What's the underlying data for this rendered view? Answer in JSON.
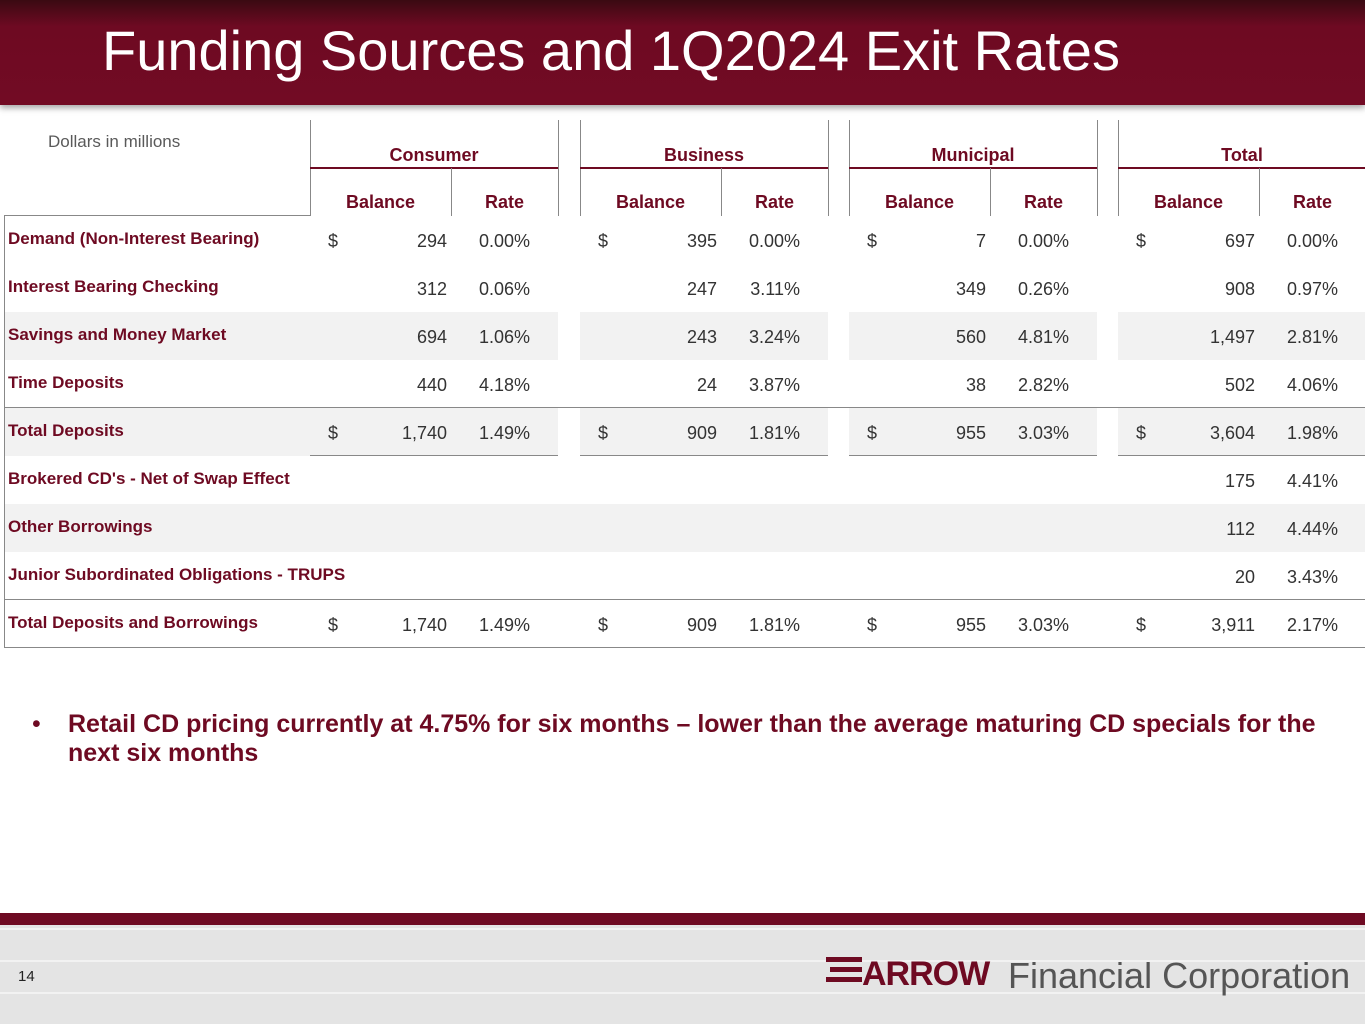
{
  "header": {
    "title": "Funding Sources and 1Q2024 Exit Rates"
  },
  "table": {
    "note": "Dollars in millions",
    "groups": [
      "Consumer",
      "Business",
      "Municipal",
      "Total"
    ],
    "columns": [
      "Balance",
      "Rate"
    ],
    "rows": [
      {
        "label": "Demand (Non-Interest Bearing)",
        "cells": [
          [
            "$",
            "294",
            "0.00%"
          ],
          [
            "$",
            "395",
            "0.00%"
          ],
          [
            "$",
            "7",
            "0.00%"
          ],
          [
            "$",
            "697",
            "0.00%"
          ]
        ]
      },
      {
        "label": "Interest Bearing Checking",
        "cells": [
          [
            null,
            "312",
            "0.06%"
          ],
          [
            null,
            "247",
            "3.11%"
          ],
          [
            null,
            "349",
            "0.26%"
          ],
          [
            null,
            "908",
            "0.97%"
          ]
        ]
      },
      {
        "label": "Savings and Money Market",
        "cells": [
          [
            null,
            "694",
            "1.06%"
          ],
          [
            null,
            "243",
            "3.24%"
          ],
          [
            null,
            "560",
            "4.81%"
          ],
          [
            null,
            "1,497",
            "2.81%"
          ]
        ]
      },
      {
        "label": "Time Deposits",
        "cells": [
          [
            null,
            "440",
            "4.18%"
          ],
          [
            null,
            "24",
            "3.87%"
          ],
          [
            null,
            "38",
            "2.82%"
          ],
          [
            null,
            "502",
            "4.06%"
          ]
        ]
      },
      {
        "label": "Total Deposits",
        "cells": [
          [
            "$",
            "1,740",
            "1.49%"
          ],
          [
            "$",
            "909",
            "1.81%"
          ],
          [
            "$",
            "955",
            "3.03%"
          ],
          [
            "$",
            "3,604",
            "1.98%"
          ]
        ]
      },
      {
        "label": "Brokered CD's - Net of Swap Effect",
        "cells": [
          null,
          null,
          null,
          [
            null,
            "175",
            "4.41%"
          ]
        ]
      },
      {
        "label": "Other Borrowings",
        "cells": [
          null,
          null,
          null,
          [
            null,
            "112",
            "4.44%"
          ]
        ]
      },
      {
        "label": "Junior Subordinated Obligations - TRUPS",
        "cells": [
          null,
          null,
          null,
          [
            null,
            "20",
            "3.43%"
          ]
        ]
      },
      {
        "label": "Total Deposits and Borrowings",
        "cells": [
          [
            "$",
            "1,740",
            "1.49%"
          ],
          [
            "$",
            "909",
            "1.81%"
          ],
          [
            "$",
            "955",
            "3.03%"
          ],
          [
            "$",
            "3,911",
            "2.17%"
          ]
        ]
      }
    ]
  },
  "body": {
    "bullets": [
      "Retail CD pricing currently at 4.75% for six months – lower than the average maturing CD specials for the next six months"
    ]
  },
  "footer": {
    "page": "14",
    "brand": "ARROW",
    "company": "Financial Corporation"
  }
}
